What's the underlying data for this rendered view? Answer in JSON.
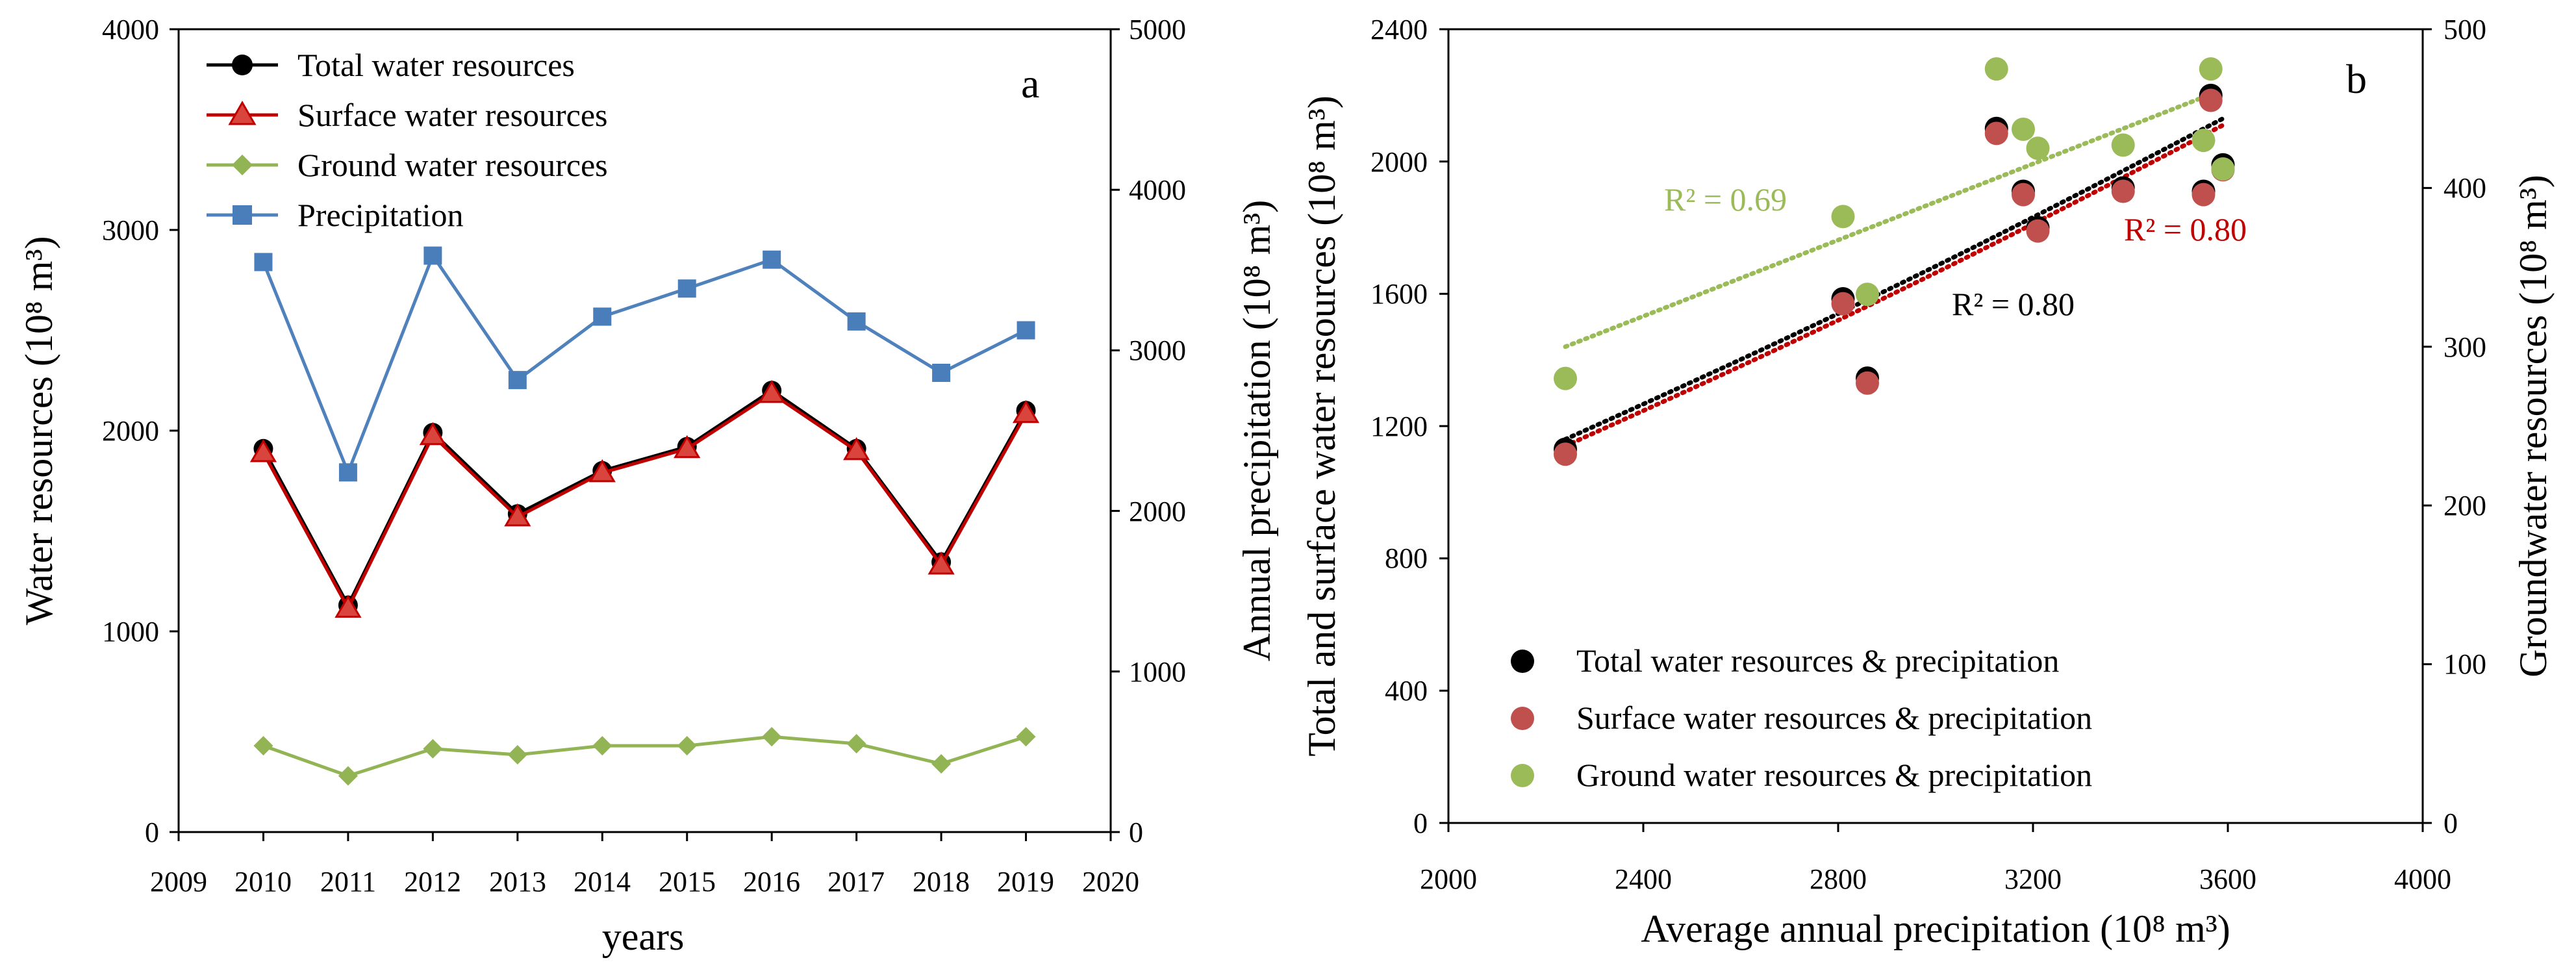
{
  "colors": {
    "total": "#000000",
    "surface": "#c00000",
    "surface_marker": "#d9453d",
    "surface_scatter": "#c0504d",
    "ground": "#92b454",
    "ground_scatter": "#9bbb59",
    "precip": "#4f81bd",
    "precip_marker": "#4a7ebb"
  },
  "chart_data": [
    {
      "type": "line",
      "panel_letter": "a",
      "xlabel": "years",
      "ylabel_left": "Water resources (10⁸ m³)",
      "ylabel_right": "Annual precipitation  (10⁸ m³)",
      "xlim": [
        2009,
        2020
      ],
      "x_ticks": [
        "2009",
        "2010",
        "2011",
        "2012",
        "2013",
        "2014",
        "2015",
        "2016",
        "2017",
        "2018",
        "2019",
        "2020"
      ],
      "ylim_left": [
        0,
        4000
      ],
      "y_ticks_left": [
        "0",
        "1000",
        "2000",
        "3000",
        "4000"
      ],
      "ylim_right": [
        0,
        5000
      ],
      "y_ticks_right": [
        "0",
        "1000",
        "2000",
        "3000",
        "4000",
        "5000"
      ],
      "x": [
        2010,
        2011,
        2012,
        2013,
        2014,
        2015,
        2016,
        2017,
        2018,
        2019
      ],
      "legend_position": "top-left",
      "series": [
        {
          "name": "Total water resources",
          "axis": "left",
          "marker": "circle",
          "values": [
            1910,
            1130,
            1990,
            1585,
            1800,
            1920,
            2200,
            1910,
            1345,
            2100
          ]
        },
        {
          "name": "Surface water resources",
          "axis": "left",
          "marker": "triangle",
          "values": [
            1890,
            1115,
            1975,
            1570,
            1790,
            1910,
            2185,
            1900,
            1330,
            2085
          ]
        },
        {
          "name": "Ground water resources",
          "axis": "left",
          "marker": "diamond",
          "values": [
            430,
            280,
            415,
            385,
            430,
            430,
            475,
            440,
            340,
            475
          ]
        },
        {
          "name": "Precipitation",
          "axis": "right",
          "marker": "square",
          "values": [
            3550,
            2240,
            3590,
            2815,
            3210,
            3385,
            3565,
            3180,
            2860,
            3125
          ]
        }
      ]
    },
    {
      "type": "scatter",
      "panel_letter": "b",
      "xlabel": "Average annual precipitation (10⁸ m³)",
      "ylabel_left": "Total and surface water resources (10⁸ m³)",
      "ylabel_right": "Groundwater resources (10⁸ m³)",
      "xlim": [
        2000,
        4000
      ],
      "x_ticks": [
        "2000",
        "2400",
        "2800",
        "3200",
        "3600",
        "4000"
      ],
      "ylim_left": [
        0,
        2400
      ],
      "y_ticks_left": [
        "0",
        "400",
        "800",
        "1200",
        "1600",
        "2000",
        "2400"
      ],
      "ylim_right": [
        0,
        500
      ],
      "y_ticks_right": [
        "0",
        "100",
        "200",
        "300",
        "400",
        "500"
      ],
      "legend_position": "bottom-left",
      "series": [
        {
          "name": "Total water resources & precipitation",
          "axis": "left",
          "points": [
            [
              2240,
              1130
            ],
            [
              2810,
              1585
            ],
            [
              2860,
              1345
            ],
            [
              3125,
              2100
            ],
            [
              3180,
              1910
            ],
            [
              3210,
              1800
            ],
            [
              3385,
              1920
            ],
            [
              3550,
              1910
            ],
            [
              3565,
              2200
            ],
            [
              3590,
              1990
            ]
          ],
          "trend": {
            "x": [
              2240,
              3590
            ],
            "y": [
              1160,
              2130
            ],
            "r2": "R² = 0.80"
          }
        },
        {
          "name": "Surface water resources & precipitation",
          "axis": "left",
          "points": [
            [
              2240,
              1115
            ],
            [
              2810,
              1570
            ],
            [
              2860,
              1330
            ],
            [
              3125,
              2085
            ],
            [
              3180,
              1900
            ],
            [
              3210,
              1790
            ],
            [
              3385,
              1910
            ],
            [
              3550,
              1900
            ],
            [
              3565,
              2185
            ],
            [
              3590,
              1975
            ]
          ],
          "trend": {
            "x": [
              2240,
              3590
            ],
            "y": [
              1140,
              2110
            ],
            "r2": "R² = 0.80"
          }
        },
        {
          "name": "Ground water resources & precipitation",
          "axis": "right",
          "points": [
            [
              2240,
              280
            ],
            [
              2810,
              382
            ],
            [
              2860,
              333
            ],
            [
              3125,
              475
            ],
            [
              3180,
              437
            ],
            [
              3210,
              425
            ],
            [
              3385,
              427
            ],
            [
              3550,
              430
            ],
            [
              3565,
              475
            ],
            [
              3590,
              412
            ]
          ],
          "trend": {
            "x": [
              2240,
              3590
            ],
            "y": [
              300,
              462
            ],
            "r2": "R² = 0.69"
          }
        }
      ]
    }
  ]
}
